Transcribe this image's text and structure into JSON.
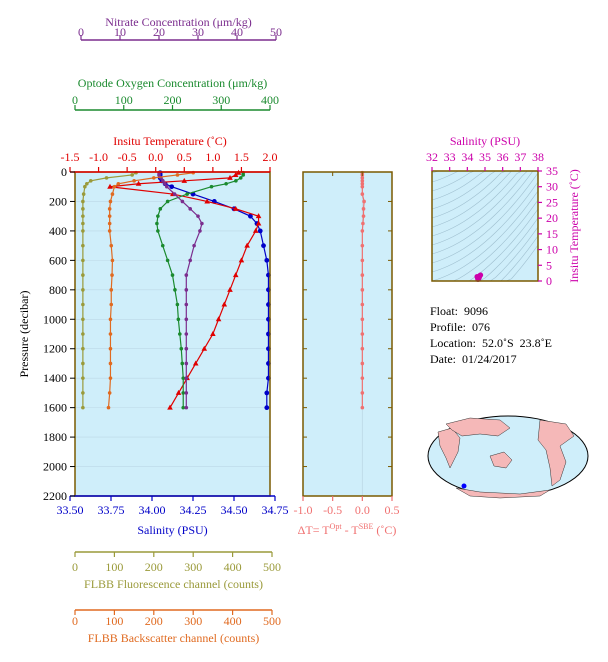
{
  "colors": {
    "nitrate": "#7b2d8e",
    "oxygen": "#1a8a2e",
    "temperature": "#e00000",
    "salinity": "#0000c8",
    "fluorescence": "#9a9a3a",
    "backscatter": "#e06a20",
    "dt": "#f07070",
    "plot_bg": "#cfeefa",
    "axis": "#7a5a00",
    "salinity_ts": "#cc00aa",
    "land": "#f5b8b8"
  },
  "axes": {
    "nitrate": {
      "label": "Nitrate Concentration (μm/kg)",
      "ticks": [
        "0",
        "10",
        "20",
        "30",
        "40",
        "50"
      ]
    },
    "oxygen": {
      "label": "Optode Oxygen Concentration (μm/kg)",
      "ticks": [
        "0",
        "100",
        "200",
        "300",
        "400"
      ]
    },
    "temperature": {
      "label": "Insitu Temperature (˚C)",
      "ticks": [
        "-1.5",
        "-1.0",
        "-0.5",
        "0.0",
        "0.5",
        "1.0",
        "1.5",
        "2.0"
      ]
    },
    "salinity": {
      "label": "Salinity (PSU)",
      "ticks": [
        "33.50",
        "33.75",
        "34.00",
        "34.25",
        "34.50",
        "34.75"
      ]
    },
    "pressure": {
      "label": "Pressure (decibar)",
      "ticks": [
        "0",
        "200",
        "400",
        "600",
        "800",
        "1000",
        "1200",
        "1400",
        "1600",
        "1800",
        "2000",
        "2200"
      ]
    },
    "fluorescence": {
      "label": "FLBB Fluorescence channel (counts)",
      "ticks": [
        "0",
        "100",
        "200",
        "300",
        "400",
        "500"
      ]
    },
    "backscatter": {
      "label": "FLBB Backscatter channel (counts)",
      "ticks": [
        "0",
        "100",
        "200",
        "300",
        "400",
        "500"
      ]
    },
    "dt": {
      "label_parts": [
        "ΔT= T",
        "Opt",
        "- T",
        "SBE",
        "(˚C)"
      ],
      "ticks": [
        "-1.0",
        "-0.5",
        "0.0",
        "0.5"
      ]
    },
    "ts_salinity": {
      "label": "Salinity (PSU)",
      "ticks": [
        "32",
        "33",
        "34",
        "35",
        "36",
        "37",
        "38"
      ]
    },
    "ts_temperature": {
      "label": "Insitu Temperature (˚C)",
      "ticks": [
        "0",
        "5",
        "10",
        "15",
        "20",
        "25",
        "30",
        "35"
      ]
    }
  },
  "info": {
    "float": "Float:  9096",
    "profile": "Profile:  076",
    "location": "Location:  52.0˚S  23.8˚E",
    "date": "Date:  01/24/2017"
  },
  "chart_data": [
    {
      "type": "line",
      "name": "profile",
      "pressure": [
        5,
        20,
        40,
        60,
        80,
        100,
        150,
        200,
        250,
        300,
        350,
        400,
        500,
        600,
        700,
        800,
        900,
        1000,
        1100,
        1200,
        1300,
        1400,
        1500,
        1600
      ],
      "series": [
        {
          "key": "salinity",
          "axis": "salinity",
          "values": [
            34.05,
            34.05,
            34.05,
            34.06,
            34.08,
            34.12,
            34.25,
            34.38,
            34.5,
            34.6,
            34.64,
            34.66,
            34.68,
            34.7,
            34.71,
            34.71,
            34.71,
            34.71,
            34.71,
            34.71,
            34.71,
            34.71,
            34.7,
            34.7
          ]
        },
        {
          "key": "temperature",
          "axis": "temperature",
          "values": [
            1.45,
            1.4,
            1.3,
            0.5,
            -0.3,
            -0.8,
            0.3,
            0.9,
            1.4,
            1.8,
            1.8,
            1.75,
            1.6,
            1.5,
            1.4,
            1.3,
            1.2,
            1.1,
            1.0,
            0.85,
            0.7,
            0.55,
            0.4,
            0.25
          ]
        },
        {
          "key": "oxygen",
          "axis": "oxygen",
          "values": [
            345,
            345,
            340,
            330,
            310,
            280,
            230,
            190,
            175,
            170,
            168,
            170,
            180,
            190,
            200,
            205,
            210,
            212,
            215,
            218,
            220,
            222,
            222,
            222
          ]
        },
        {
          "key": "nitrate",
          "axis": "nitrate",
          "values": [
            20,
            20,
            20.5,
            21,
            21.5,
            22,
            24,
            26,
            28,
            30,
            31,
            30.5,
            29,
            28,
            27,
            27,
            27,
            27,
            27,
            27,
            27,
            27,
            27,
            27
          ]
        },
        {
          "key": "fluorescence",
          "axis": "fluorescence",
          "values": [
            155,
            145,
            80,
            40,
            30,
            25,
            22,
            20,
            20,
            20,
            20,
            20,
            20,
            20,
            20,
            20,
            20,
            20,
            20,
            20,
            20,
            20,
            20,
            20
          ]
        },
        {
          "key": "backscatter",
          "axis": "backscatter",
          "values": [
            300,
            260,
            200,
            150,
            110,
            100,
            95,
            90,
            88,
            88,
            88,
            88,
            92,
            95,
            94,
            92,
            92,
            90,
            90,
            90,
            90,
            90,
            88,
            85
          ]
        },
        {
          "key": "dt",
          "axis": "dt",
          "values": [
            0,
            0,
            0,
            0,
            0,
            0,
            0,
            0.03,
            0.02,
            0.02,
            0.01,
            0,
            0,
            0,
            0,
            0,
            0,
            0,
            0,
            0,
            0,
            0,
            0,
            0
          ]
        }
      ],
      "xlim": {
        "nitrate": [
          0,
          50
        ],
        "oxygen": [
          0,
          400
        ],
        "temperature": [
          -1.5,
          2.0
        ],
        "salinity": [
          33.5,
          34.75
        ],
        "fluorescence": [
          0,
          500
        ],
        "backscatter": [
          0,
          500
        ],
        "dt": [
          -1.0,
          0.5
        ]
      },
      "ylim": [
        2200,
        0
      ]
    },
    {
      "type": "scatter",
      "name": "ts-diagram",
      "xlim": [
        32,
        38
      ],
      "ylim": [
        0,
        35
      ],
      "points": [
        [
          34.6,
          0.5
        ],
        [
          34.65,
          0.8
        ],
        [
          34.68,
          1.2
        ],
        [
          34.7,
          1.5
        ],
        [
          34.72,
          1.8
        ],
        [
          34.75,
          1.9
        ],
        [
          34.62,
          1.1
        ],
        [
          34.58,
          0.9
        ],
        [
          34.55,
          1.4
        ]
      ]
    }
  ]
}
